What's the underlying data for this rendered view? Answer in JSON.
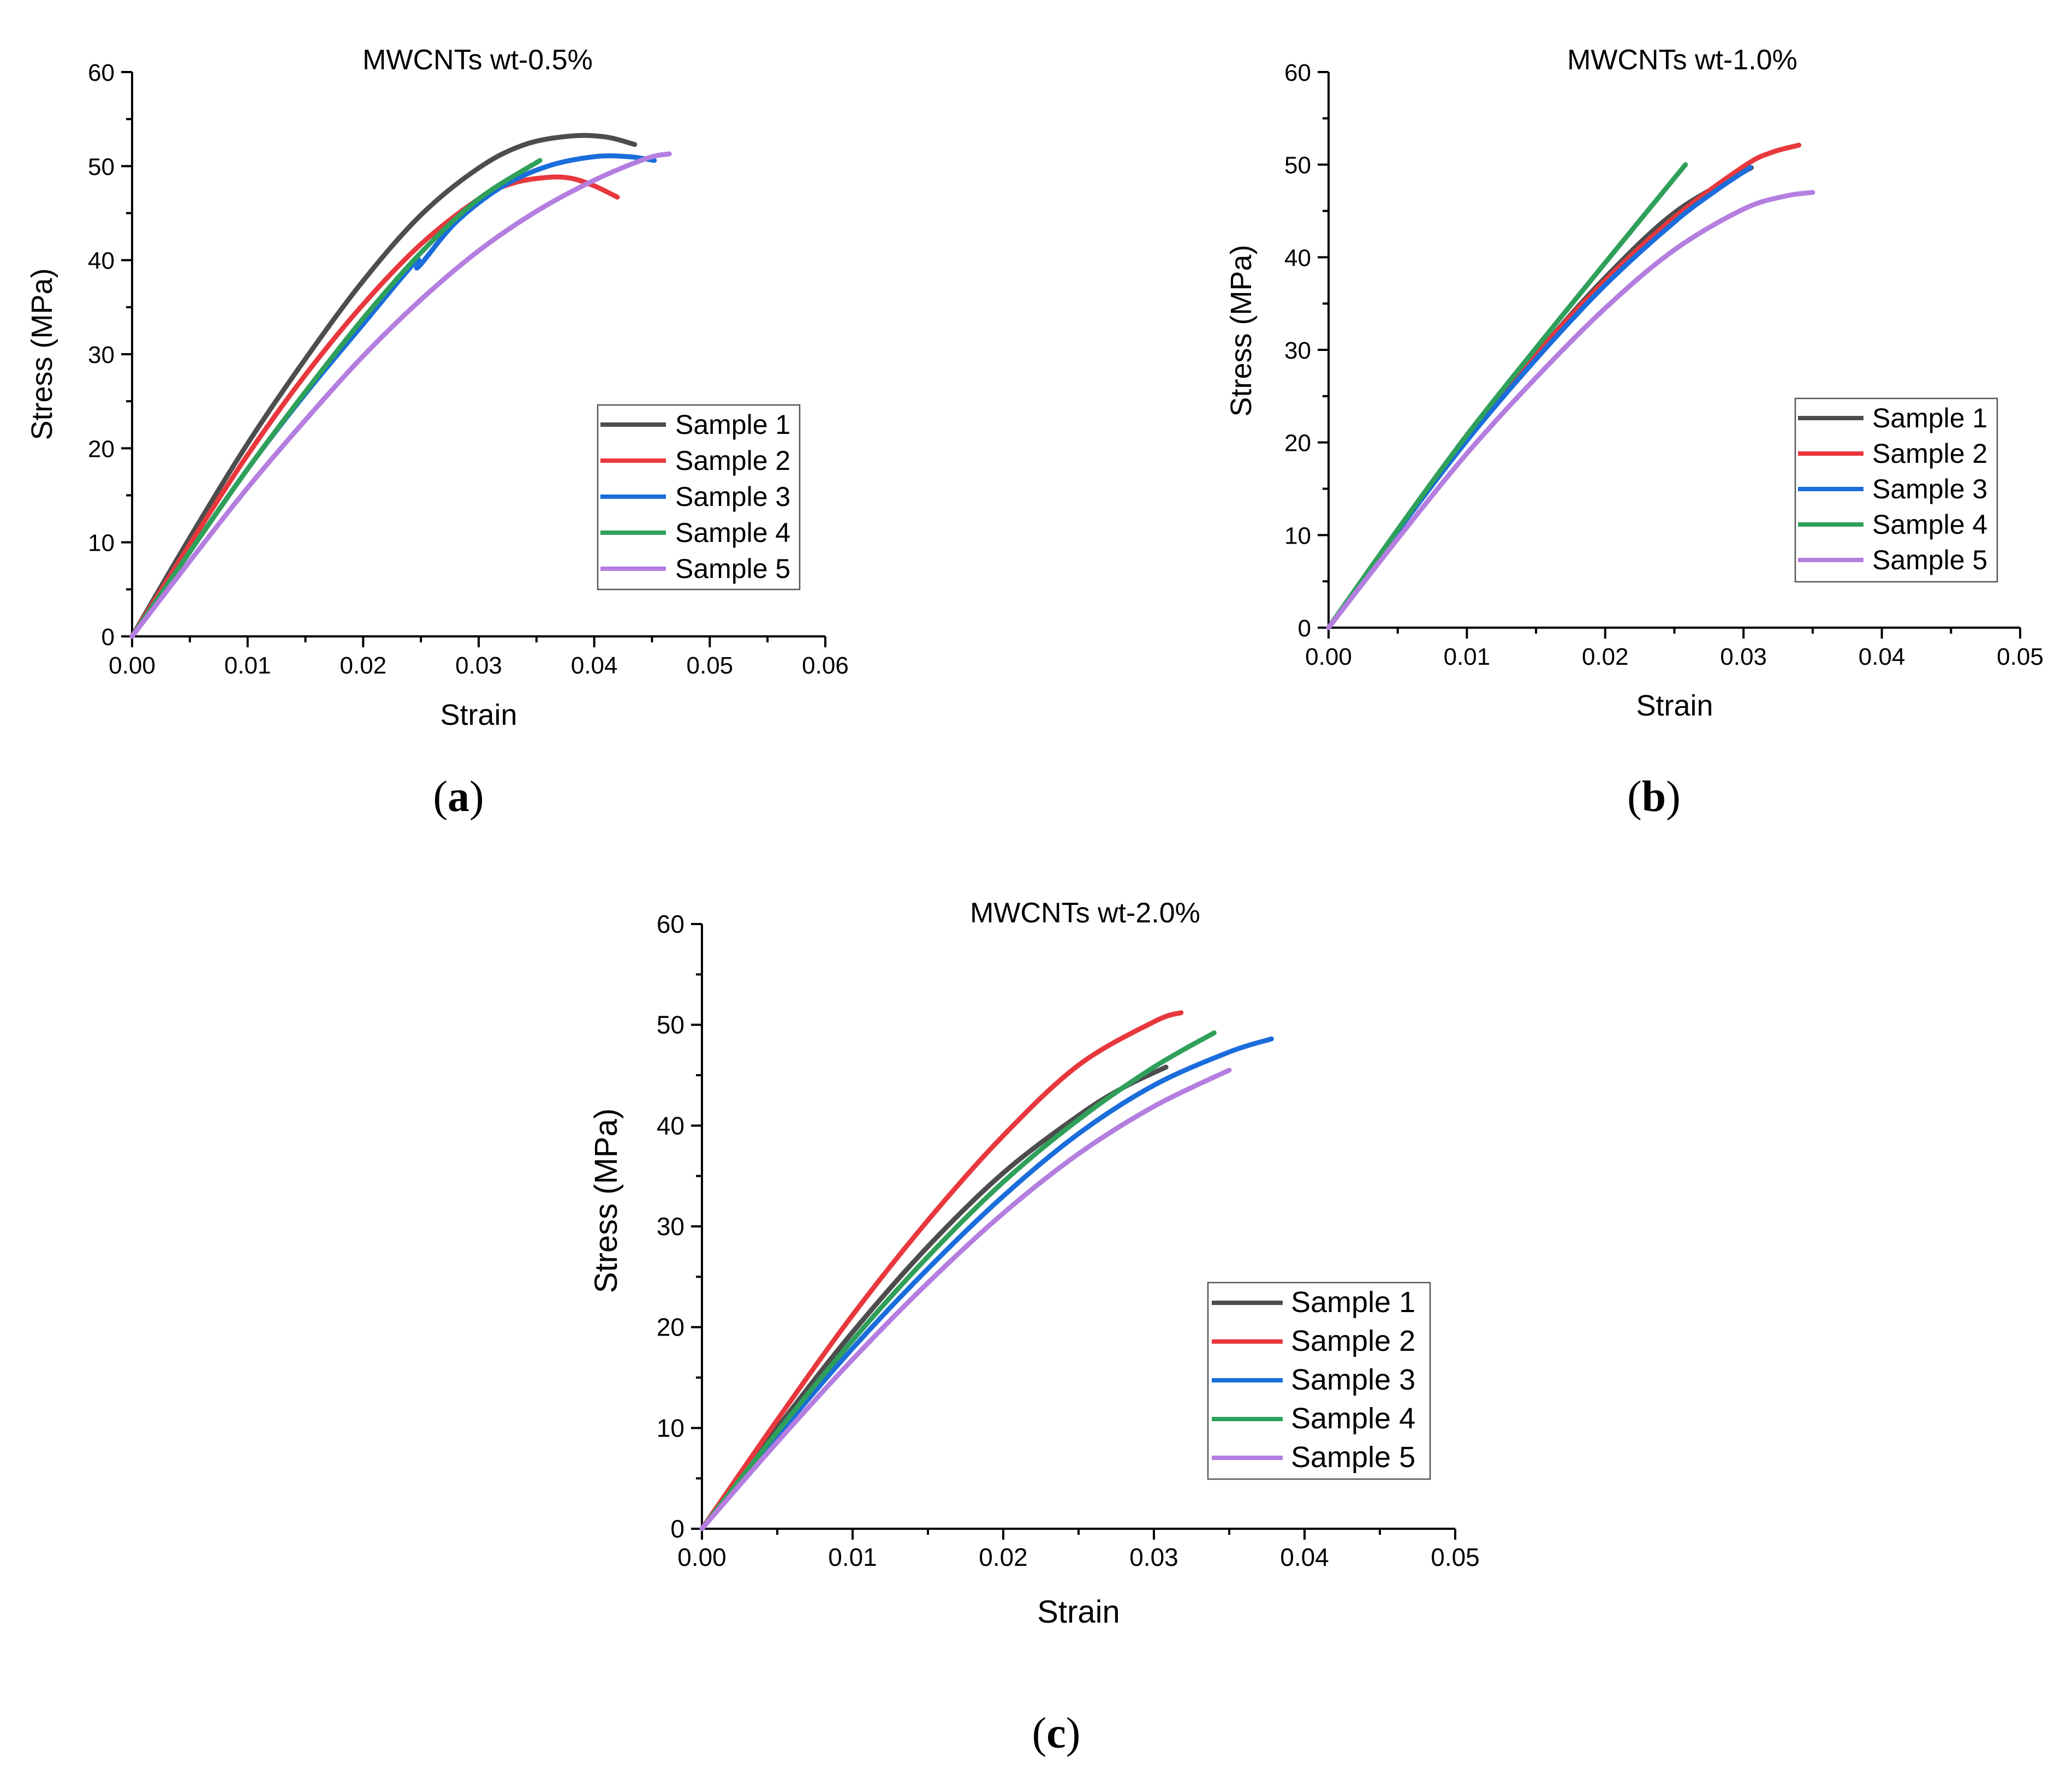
{
  "chart_data": [
    {
      "type": "line",
      "panel_label": "a",
      "title": "MWCNTs wt-0.5%",
      "xlabel": "Strain",
      "ylabel": "Stress (MPa)",
      "xlim": [
        0,
        0.06
      ],
      "ylim": [
        0,
        60
      ],
      "xticks": [
        "0.00",
        "0.01",
        "0.02",
        "0.03",
        "0.04",
        "0.05",
        "0.06"
      ],
      "yticks": [
        "0",
        "10",
        "20",
        "30",
        "40",
        "50",
        "60"
      ],
      "legend_position": "center-right",
      "series": [
        {
          "name": "Sample 1",
          "color": "#4d4d4d",
          "x": [
            0,
            0.005,
            0.01,
            0.015,
            0.02,
            0.025,
            0.03,
            0.034,
            0.038,
            0.041,
            0.0435
          ],
          "y": [
            0,
            10.5,
            20.5,
            29.5,
            37.8,
            44.8,
            49.8,
            52.3,
            53.2,
            53.1,
            52.3
          ]
        },
        {
          "name": "Sample 2",
          "color": "#e8383d",
          "x": [
            0,
            0.005,
            0.01,
            0.015,
            0.02,
            0.025,
            0.03,
            0.033,
            0.036,
            0.038,
            0.04,
            0.042
          ],
          "y": [
            0,
            9.8,
            19.3,
            27.8,
            35.3,
            41.7,
            46.5,
            48.2,
            48.8,
            48.7,
            47.9,
            46.7
          ]
        },
        {
          "name": "Sample 3",
          "color": "#1a6ddb",
          "x": [
            0,
            0.005,
            0.01,
            0.015,
            0.02,
            0.0245,
            0.0248,
            0.028,
            0.032,
            0.036,
            0.04,
            0.043,
            0.0452
          ],
          "y": [
            0,
            9.0,
            17.8,
            25.8,
            33.2,
            39.8,
            39.3,
            44.0,
            47.8,
            50.0,
            51.0,
            51.0,
            50.6
          ]
        },
        {
          "name": "Sample 4",
          "color": "#2fa05a",
          "x": [
            0,
            0.005,
            0.01,
            0.015,
            0.02,
            0.025,
            0.03,
            0.0353
          ],
          "y": [
            0,
            9.0,
            17.8,
            26.0,
            33.8,
            40.8,
            46.5,
            50.6
          ]
        },
        {
          "name": "Sample 5",
          "color": "#b47ee0",
          "x": [
            0,
            0.005,
            0.01,
            0.015,
            0.02,
            0.025,
            0.03,
            0.035,
            0.04,
            0.0445,
            0.0465
          ],
          "y": [
            0,
            8.0,
            15.8,
            23.0,
            29.8,
            35.8,
            41.0,
            45.2,
            48.5,
            50.8,
            51.3
          ]
        }
      ]
    },
    {
      "type": "line",
      "panel_label": "b",
      "title": "MWCNTs wt-1.0%",
      "xlabel": "Strain",
      "ylabel": "Stress (MPa)",
      "xlim": [
        0,
        0.05
      ],
      "ylim": [
        0,
        60
      ],
      "xticks": [
        "0.00",
        "0.01",
        "0.02",
        "0.03",
        "0.04",
        "0.05"
      ],
      "yticks": [
        "0",
        "10",
        "20",
        "30",
        "40",
        "50",
        "60"
      ],
      "legend_position": "center-right",
      "series": [
        {
          "name": "Sample 1",
          "color": "#4d4d4d",
          "x": [
            0,
            0.005,
            0.01,
            0.015,
            0.02,
            0.025,
            0.03,
            0.0305
          ],
          "y": [
            0,
            10.5,
            20.5,
            29.5,
            37.8,
            44.8,
            49.2,
            49.6
          ]
        },
        {
          "name": "Sample 2",
          "color": "#e8383d",
          "x": [
            0,
            0.005,
            0.01,
            0.015,
            0.02,
            0.025,
            0.03,
            0.032,
            0.034
          ],
          "y": [
            0,
            10.5,
            20.5,
            29.5,
            37.5,
            44.3,
            49.8,
            51.3,
            52.1
          ]
        },
        {
          "name": "Sample 3",
          "color": "#1a6ddb",
          "x": [
            0,
            0.005,
            0.01,
            0.015,
            0.02,
            0.025,
            0.028,
            0.0305
          ],
          "y": [
            0,
            10.4,
            20.2,
            29.0,
            37.0,
            43.8,
            47.2,
            49.7
          ]
        },
        {
          "name": "Sample 4",
          "color": "#2fa05a",
          "x": [
            0,
            0.005,
            0.01,
            0.015,
            0.02,
            0.0258
          ],
          "y": [
            0,
            10.6,
            20.8,
            30.2,
            39.4,
            50.0
          ]
        },
        {
          "name": "Sample 5",
          "color": "#b47ee0",
          "x": [
            0,
            0.005,
            0.01,
            0.015,
            0.02,
            0.025,
            0.03,
            0.033,
            0.035
          ],
          "y": [
            0,
            9.6,
            18.8,
            27.0,
            34.5,
            40.8,
            45.2,
            46.6,
            47.0
          ]
        }
      ]
    },
    {
      "type": "line",
      "panel_label": "c",
      "title": "MWCNTs wt-2.0%",
      "xlabel": "Strain",
      "ylabel": "Stress (MPa)",
      "xlim": [
        0,
        0.05
      ],
      "ylim": [
        0,
        60
      ],
      "xticks": [
        "0.00",
        "0.01",
        "0.02",
        "0.03",
        "0.04",
        "0.05"
      ],
      "yticks": [
        "0",
        "10",
        "20",
        "30",
        "40",
        "50",
        "60"
      ],
      "legend_position": "bottom-right",
      "series": [
        {
          "name": "Sample 1",
          "color": "#4d4d4d",
          "x": [
            0,
            0.005,
            0.01,
            0.015,
            0.02,
            0.025,
            0.028,
            0.0308
          ],
          "y": [
            0,
            10.0,
            19.5,
            28.0,
            35.3,
            41.0,
            43.8,
            45.8
          ]
        },
        {
          "name": "Sample 2",
          "color": "#e8383d",
          "x": [
            0,
            0.005,
            0.01,
            0.015,
            0.02,
            0.025,
            0.03,
            0.0318
          ],
          "y": [
            0,
            10.8,
            21.2,
            30.6,
            39.0,
            46.0,
            50.3,
            51.2
          ]
        },
        {
          "name": "Sample 3",
          "color": "#1a6ddb",
          "x": [
            0,
            0.005,
            0.01,
            0.015,
            0.02,
            0.025,
            0.03,
            0.035,
            0.0378
          ],
          "y": [
            0,
            9.2,
            17.9,
            25.8,
            33.0,
            39.2,
            44.0,
            47.3,
            48.6
          ]
        },
        {
          "name": "Sample 4",
          "color": "#2fa05a",
          "x": [
            0,
            0.005,
            0.01,
            0.015,
            0.02,
            0.025,
            0.03,
            0.034
          ],
          "y": [
            0,
            9.6,
            18.7,
            27.0,
            34.4,
            40.6,
            45.8,
            49.2
          ]
        },
        {
          "name": "Sample 5",
          "color": "#b47ee0",
          "x": [
            0,
            0.005,
            0.01,
            0.015,
            0.02,
            0.025,
            0.03,
            0.035
          ],
          "y": [
            0,
            8.6,
            16.8,
            24.4,
            31.3,
            37.2,
            41.9,
            45.5
          ]
        }
      ]
    }
  ]
}
